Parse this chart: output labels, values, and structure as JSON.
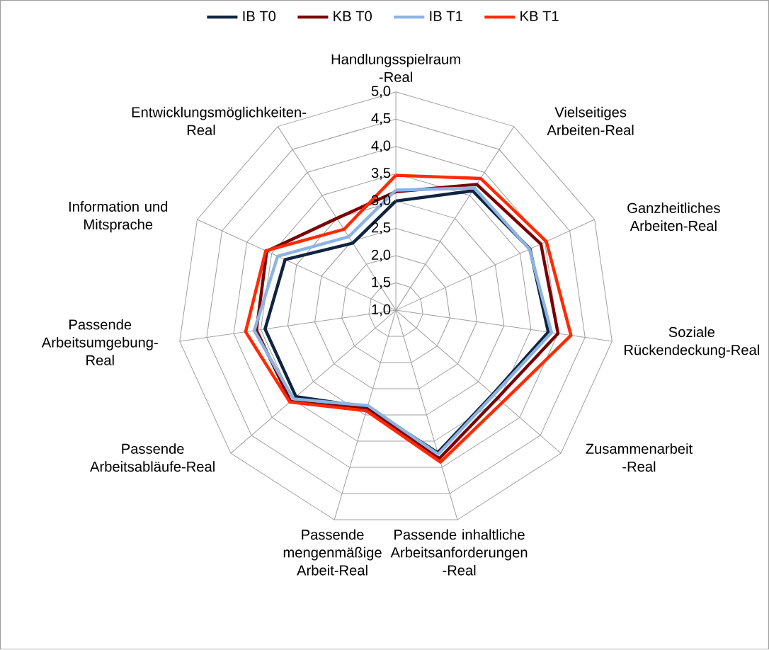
{
  "chart_data": {
    "type": "radar",
    "legend": "top",
    "grid": true,
    "categories": [
      "Handlungsspielraum -Real",
      "Vielseitiges Arbeiten-Real",
      "Ganzheitliches Arbeiten-Real",
      "Soziale Rückendeckung-Real",
      "Zusammenarbeit -Real",
      "Passende inhaltliche Arbeitsanforderungen -Real",
      "Passende mengenmäßige Arbeit-Real",
      "Passende Arbeitsabläufe-Real",
      "Passende Arbeitsumgebung-Real",
      "Information und Mitsprache",
      "Entwicklungsmöglichkeiten-Real"
    ],
    "ylim": [
      1,
      5
    ],
    "yticks": [
      {
        "value": 1,
        "label": "1,0"
      },
      {
        "value": 1.5,
        "label": "1,5"
      },
      {
        "value": 2,
        "label": "2,0"
      },
      {
        "value": 2.5,
        "label": "2,5"
      },
      {
        "value": 3,
        "label": "3,0"
      },
      {
        "value": 3.5,
        "label": "3,5"
      },
      {
        "value": 4,
        "label": "4,0"
      },
      {
        "value": 4.5,
        "label": "4,5"
      },
      {
        "value": 5,
        "label": "5,0"
      }
    ],
    "series": [
      {
        "name": "IB T0",
        "color": "#0f243e",
        "values": [
          3.0,
          3.6,
          3.7,
          3.82,
          3.35,
          3.72,
          2.85,
          3.42,
          3.42,
          3.23,
          2.46
        ]
      },
      {
        "name": "KB T0",
        "color": "#7b0000",
        "values": [
          3.17,
          3.74,
          3.92,
          4.0,
          3.46,
          3.83,
          2.88,
          3.55,
          3.58,
          3.6,
          3.0
        ]
      },
      {
        "name": "IB T1",
        "color": "#8db3e2",
        "values": [
          3.2,
          3.66,
          3.69,
          3.88,
          3.37,
          3.75,
          2.82,
          3.48,
          3.62,
          3.38,
          2.6
        ]
      },
      {
        "name": "KB T1",
        "color": "#ff2a00",
        "values": [
          3.47,
          3.87,
          4.03,
          4.24,
          3.58,
          3.9,
          2.92,
          3.57,
          3.78,
          3.62,
          2.76
        ]
      }
    ]
  }
}
